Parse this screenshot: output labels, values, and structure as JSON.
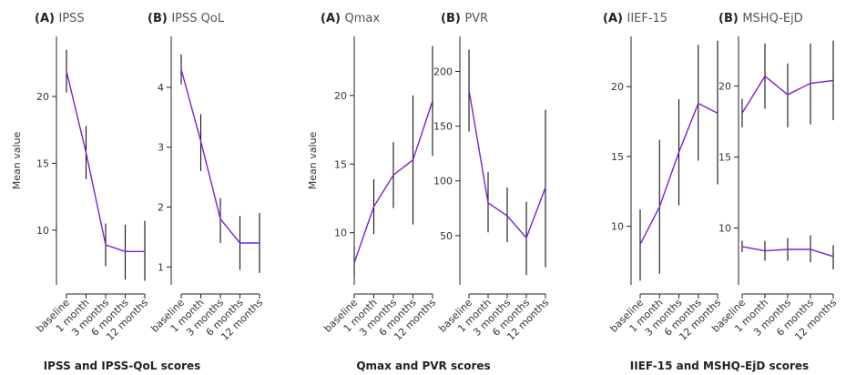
{
  "groups": [
    {
      "label": "IPSS and IPSS-QoL scores"
    },
    {
      "label": "Qmax and PVR scores"
    },
    {
      "label": "IIEF-15 and MSHQ-EjD scores"
    }
  ],
  "chart_data": [
    {
      "type": "line",
      "letter": "(A)",
      "title": "IPSS",
      "ylabel": "Mean value",
      "categories": [
        "baseline",
        "1 month",
        "3 months",
        "6 months",
        "12 months"
      ],
      "ylim": [
        5.9,
        24.5
      ],
      "yticks": [
        10,
        15,
        20
      ],
      "series": [
        {
          "values": [
            21.9,
            15.8,
            8.9,
            8.4,
            8.4
          ],
          "lower": [
            20.3,
            13.8,
            7.3,
            6.3,
            6.2
          ],
          "upper": [
            23.5,
            17.8,
            10.5,
            10.4,
            10.7
          ]
        }
      ]
    },
    {
      "type": "line",
      "letter": "(B)",
      "title": "IPSS QoL",
      "ylabel": "",
      "categories": [
        "baseline",
        "1 month",
        "3 months",
        "6 months",
        "12 months"
      ],
      "ylim": [
        0.7,
        4.85
      ],
      "yticks": [
        1,
        2,
        3,
        4
      ],
      "series": [
        {
          "values": [
            4.3,
            3.1,
            1.8,
            1.4,
            1.4
          ],
          "lower": [
            4.05,
            2.6,
            1.4,
            0.95,
            0.9
          ],
          "upper": [
            4.55,
            3.55,
            2.15,
            1.85,
            1.9
          ]
        }
      ]
    },
    {
      "type": "line",
      "letter": "(A)",
      "title": "Qmax",
      "ylabel": "Mean value",
      "categories": [
        "baseline",
        "1 month",
        "3 months",
        "6 months",
        "12 months"
      ],
      "ylim": [
        6.2,
        24.3
      ],
      "yticks": [
        10,
        15,
        20
      ],
      "series": [
        {
          "values": [
            7.8,
            11.9,
            14.2,
            15.3,
            19.6
          ],
          "lower": [
            6.8,
            9.9,
            11.8,
            10.6,
            15.6
          ],
          "upper": [
            9.0,
            13.9,
            16.6,
            20.0,
            23.6
          ]
        }
      ]
    },
    {
      "type": "line",
      "letter": "(B)",
      "title": "PVR",
      "ylabel": "",
      "categories": [
        "baseline",
        "1 month",
        "3 months",
        "6 months",
        "12 months"
      ],
      "ylim": [
        5,
        232
      ],
      "yticks": [
        50,
        100,
        150,
        200
      ],
      "series": [
        {
          "values": [
            183,
            80,
            68,
            48,
            94
          ],
          "lower": [
            145,
            53,
            44,
            14,
            21
          ],
          "upper": [
            220,
            108,
            94,
            81,
            165
          ]
        }
      ]
    },
    {
      "type": "line",
      "letter": "(A)",
      "title": "IIEF-15",
      "ylabel": "",
      "categories": [
        "baseline",
        "1 month",
        "3 months",
        "6 months",
        "12 months"
      ],
      "ylim": [
        5.8,
        23.6
      ],
      "yticks": [
        10,
        15,
        20
      ],
      "series": [
        {
          "values": [
            8.7,
            11.4,
            15.3,
            18.8,
            18.1
          ],
          "lower": [
            6.1,
            6.6,
            11.5,
            14.7,
            13.0
          ],
          "upper": [
            11.2,
            16.2,
            19.1,
            23.0,
            23.3
          ]
        }
      ]
    },
    {
      "type": "line",
      "letter": "(B)",
      "title": "MSHQ-EjD",
      "ylabel": "",
      "categories": [
        "baseline",
        "1 month",
        "3 months",
        "6 months",
        "12 months"
      ],
      "ylim": [
        6.0,
        23.5
      ],
      "yticks": [
        10,
        15,
        20
      ],
      "series": [
        {
          "values": [
            18.1,
            20.7,
            19.4,
            20.2,
            20.4
          ],
          "lower": [
            17.1,
            18.4,
            17.1,
            17.3,
            17.6
          ],
          "upper": [
            19.1,
            23.0,
            21.6,
            23.0,
            23.2
          ]
        },
        {
          "values": [
            8.7,
            8.4,
            8.5,
            8.5,
            8.0
          ],
          "lower": [
            8.3,
            7.7,
            7.7,
            7.6,
            7.1
          ],
          "upper": [
            9.1,
            9.1,
            9.3,
            9.5,
            8.8
          ]
        }
      ]
    }
  ]
}
